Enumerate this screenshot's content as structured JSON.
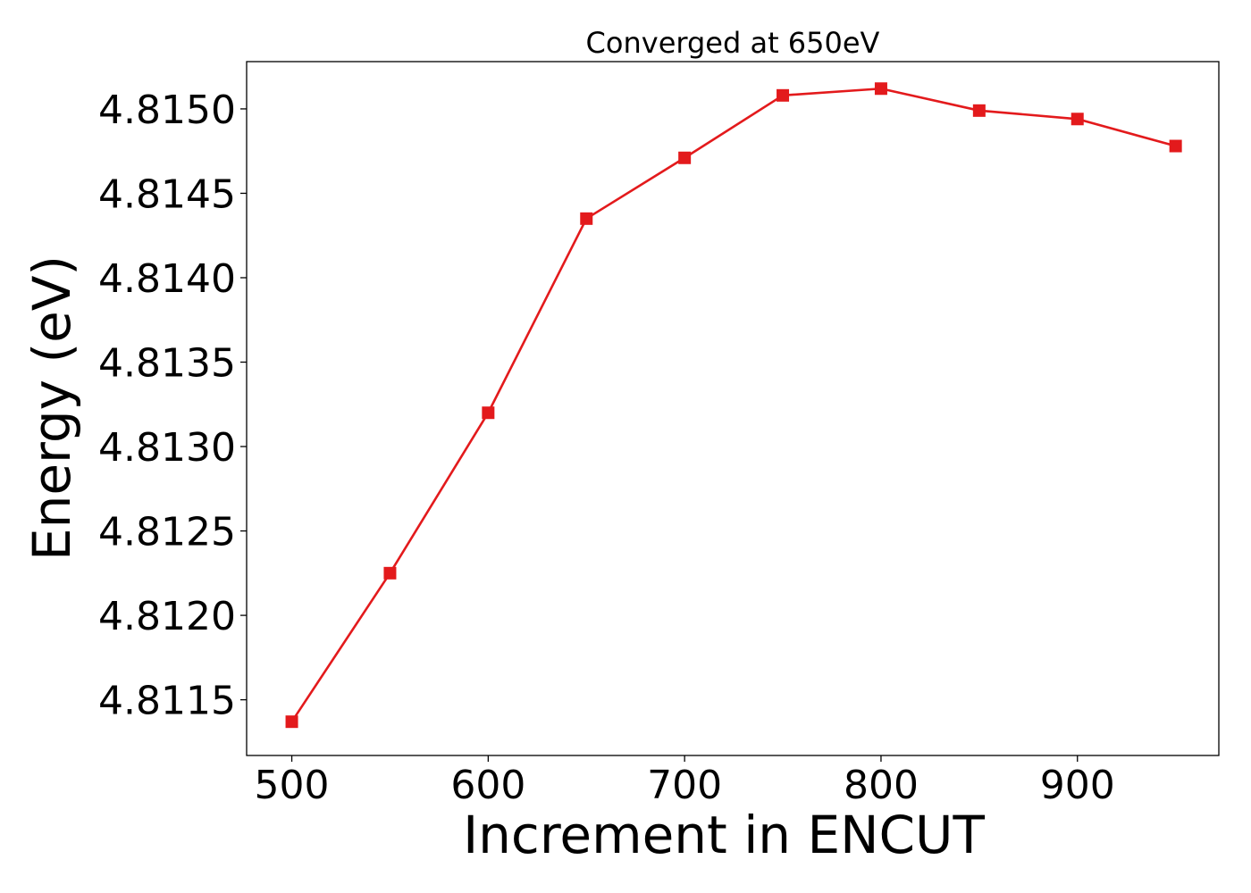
{
  "chart_data": {
    "type": "line",
    "title": "Converged at 650eV",
    "xlabel": "Increment in ENCUT",
    "ylabel": "Energy (eV)",
    "xlim": [
      477,
      972
    ],
    "ylim": [
      4.81117,
      4.81528
    ],
    "xticks": [
      500,
      600,
      700,
      800,
      900
    ],
    "xtick_labels": [
      "500",
      "600",
      "700",
      "800",
      "900"
    ],
    "yticks": [
      4.8115,
      4.812,
      4.8125,
      4.813,
      4.8135,
      4.814,
      4.8145,
      4.815
    ],
    "ytick_labels": [
      "4.8115",
      "4.8120",
      "4.8125",
      "4.8130",
      "4.8135",
      "4.8140",
      "4.8145",
      "4.8150"
    ],
    "grid": false,
    "legend": null,
    "series": [
      {
        "color": "#e31a1c",
        "marker": "square",
        "x": [
          500,
          550,
          600,
          650,
          700,
          750,
          800,
          850,
          900,
          950
        ],
        "y": [
          4.81137,
          4.81225,
          4.8132,
          4.81435,
          4.81471,
          4.81508,
          4.81512,
          4.81499,
          4.81494,
          4.81478
        ]
      }
    ]
  }
}
